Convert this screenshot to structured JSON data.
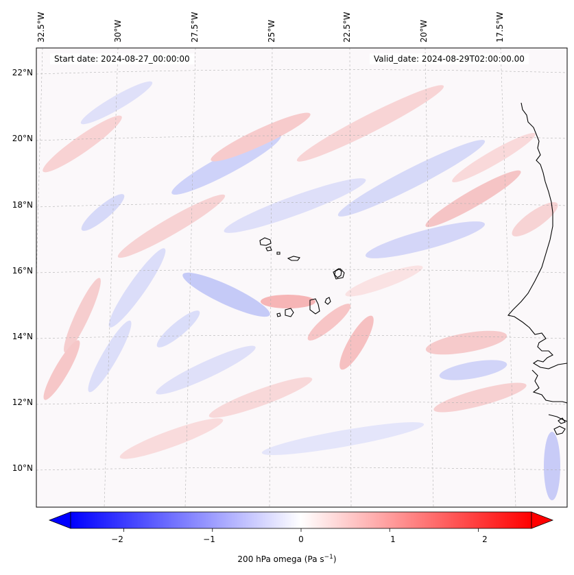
{
  "map": {
    "start_date": "Start date: 2024-08-27_00:00:00",
    "valid_date": "Valid_date: 2024-08-29T02:00:00.00",
    "projection_note": "Lambert-like regional view, Cape Verde region",
    "lon_labels": [
      "32.5°W",
      "30°W",
      "27.5°W",
      "25°W",
      "22.5°W",
      "20°W",
      "17.5°W"
    ],
    "lat_labels": [
      "22°N",
      "20°N",
      "18°N",
      "16°N",
      "14°N",
      "12°N",
      "10°N"
    ],
    "field": "200 hPa omega",
    "colormap": [
      "#0000ff",
      "#ffffff",
      "#ff0000"
    ]
  },
  "colorbar": {
    "label_main": "200 hPa omega (Pa s",
    "label_exp": "−1",
    "label_close": ")",
    "ticks": [
      "−2",
      "−1",
      "0",
      "1",
      "2"
    ],
    "tick_values": [
      -2,
      -1,
      0,
      1,
      2
    ],
    "range": [
      -2.6,
      2.6
    ],
    "extend": "both"
  }
}
